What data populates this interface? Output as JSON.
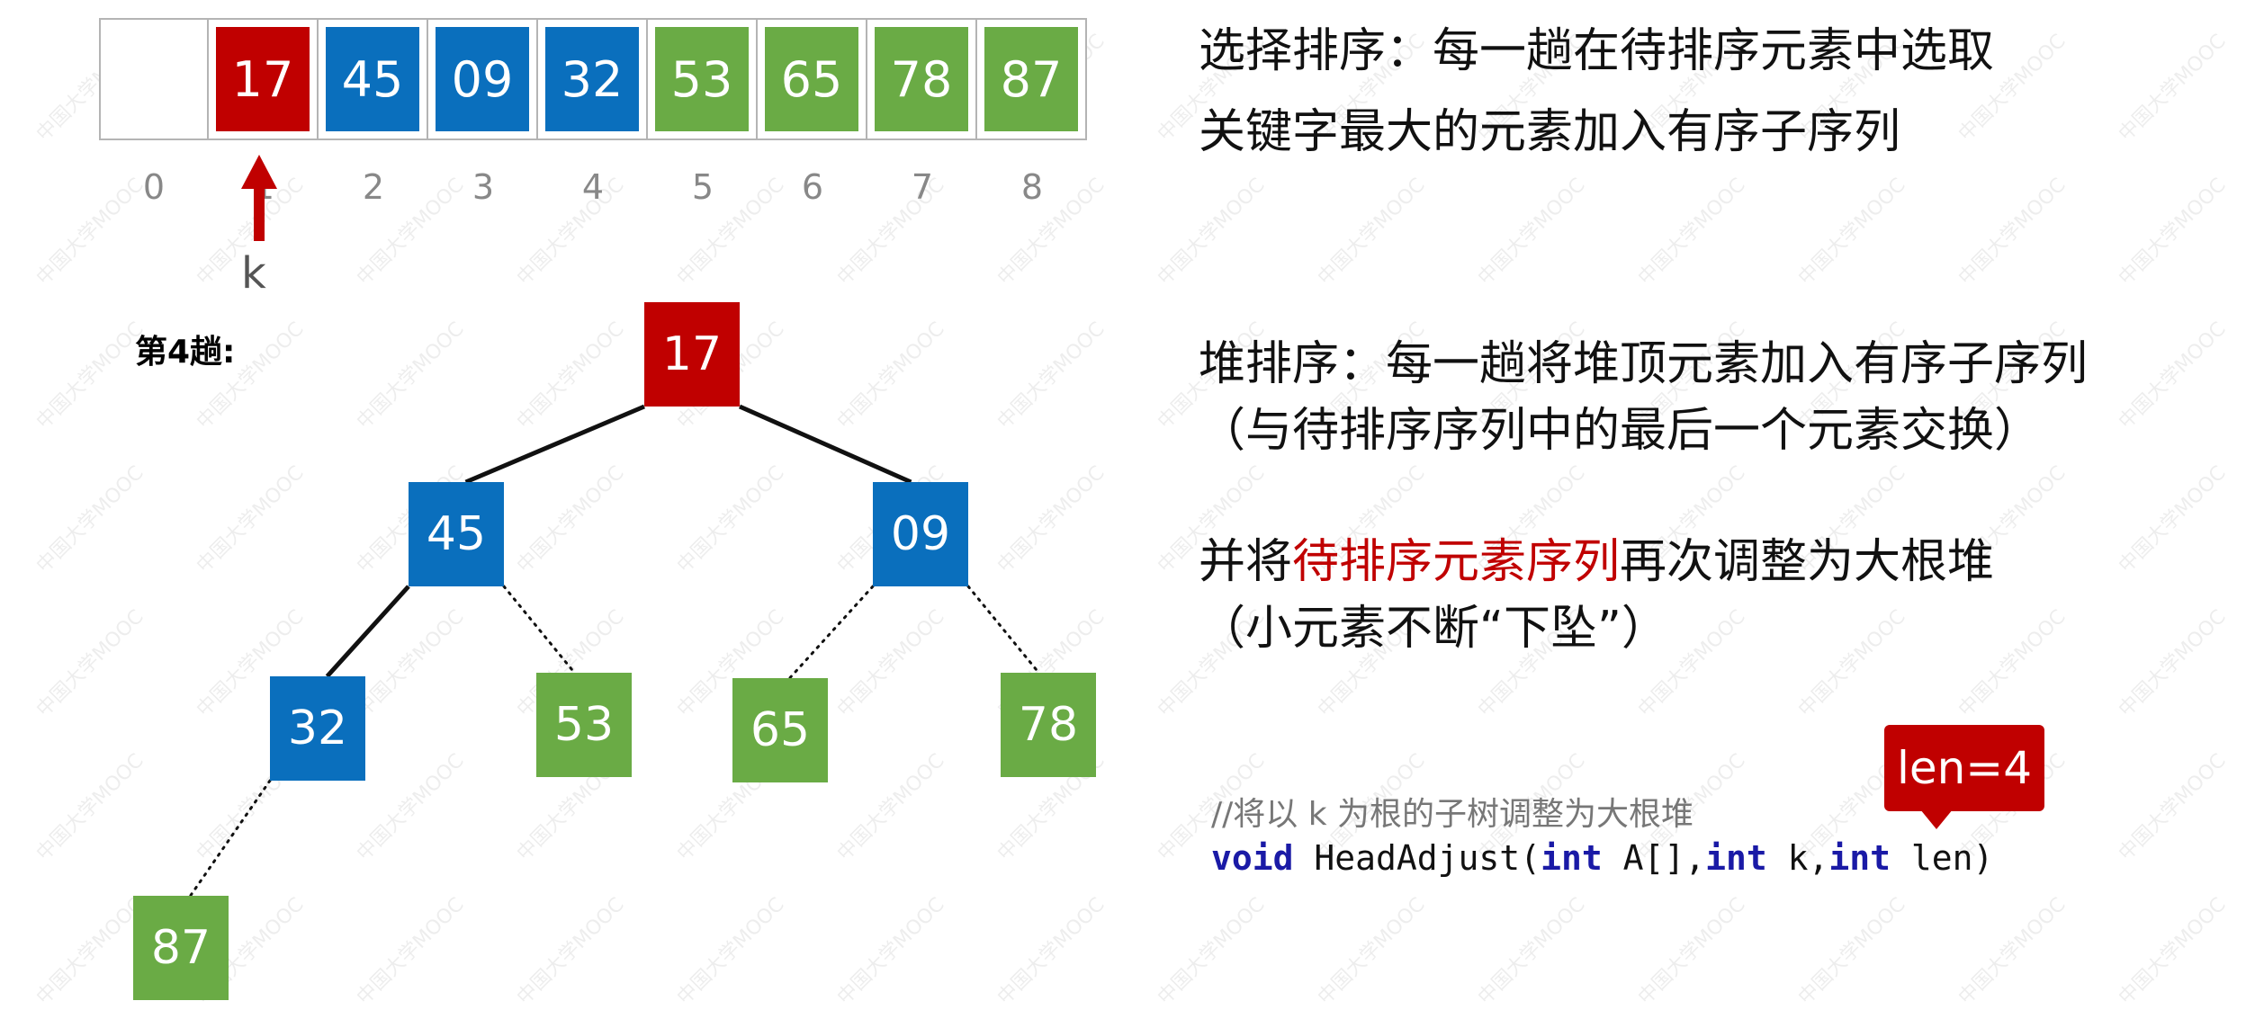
{
  "array": {
    "cells": [
      {
        "value": "",
        "color": "#ffffff"
      },
      {
        "value": "17",
        "color": "#c00000"
      },
      {
        "value": "45",
        "color": "#0a6fbd"
      },
      {
        "value": "09",
        "color": "#0a6fbd"
      },
      {
        "value": "32",
        "color": "#0a6fbd"
      },
      {
        "value": "53",
        "color": "#6aab45"
      },
      {
        "value": "65",
        "color": "#6aab45"
      },
      {
        "value": "78",
        "color": "#6aab45"
      },
      {
        "value": "87",
        "color": "#6aab45"
      }
    ],
    "indices": [
      "0",
      "1",
      "2",
      "3",
      "4",
      "5",
      "6",
      "7",
      "8"
    ]
  },
  "pointer": {
    "label": "k",
    "index": 1,
    "color": "#c00000"
  },
  "pass_label": "第4趟:",
  "tree": {
    "nodes": [
      {
        "id": "n1",
        "value": "17",
        "color": "#c00000"
      },
      {
        "id": "n2",
        "value": "45",
        "color": "#0a6fbd"
      },
      {
        "id": "n3",
        "value": "09",
        "color": "#0a6fbd"
      },
      {
        "id": "n4",
        "value": "32",
        "color": "#0a6fbd"
      },
      {
        "id": "n5",
        "value": "53",
        "color": "#6aab45"
      },
      {
        "id": "n6",
        "value": "65",
        "color": "#6aab45"
      },
      {
        "id": "n7",
        "value": "78",
        "color": "#6aab45"
      },
      {
        "id": "n8",
        "value": "87",
        "color": "#6aab45"
      }
    ],
    "edges": [
      {
        "from": "n1",
        "to": "n2",
        "style": "solid"
      },
      {
        "from": "n1",
        "to": "n3",
        "style": "solid"
      },
      {
        "from": "n2",
        "to": "n4",
        "style": "solid"
      },
      {
        "from": "n2",
        "to": "n5",
        "style": "dotted"
      },
      {
        "from": "n3",
        "to": "n6",
        "style": "dotted"
      },
      {
        "from": "n3",
        "to": "n7",
        "style": "dotted"
      },
      {
        "from": "n4",
        "to": "n8",
        "style": "dotted"
      }
    ]
  },
  "text": {
    "selection_line1": "选择排序：每一趟在待排序元素中选取",
    "selection_line2": "关键字最大的元素加入有序子序列",
    "heap_line1": "堆排序：每一趟将堆顶元素加入有序子序列",
    "heap_line2": "（与待排序序列中的最后一个元素交换）",
    "adjust_prefix": "并将",
    "adjust_highlight": "待排序元素序列",
    "adjust_suffix": "再次调整为大根堆",
    "adjust_line2": "（小元素不断“下坠”）"
  },
  "code": {
    "comment": "//将以 k 为根的子树调整为大根堆",
    "kw_void": "void",
    "fn_name": " HeadAdjust(",
    "kw_int1": "int",
    "param1": " A[],",
    "kw_int2": "int",
    "param2": " k,",
    "kw_int3": "int",
    "param3": " len)"
  },
  "badge": {
    "label": "len=4"
  },
  "watermark": "中国大学MOOC"
}
